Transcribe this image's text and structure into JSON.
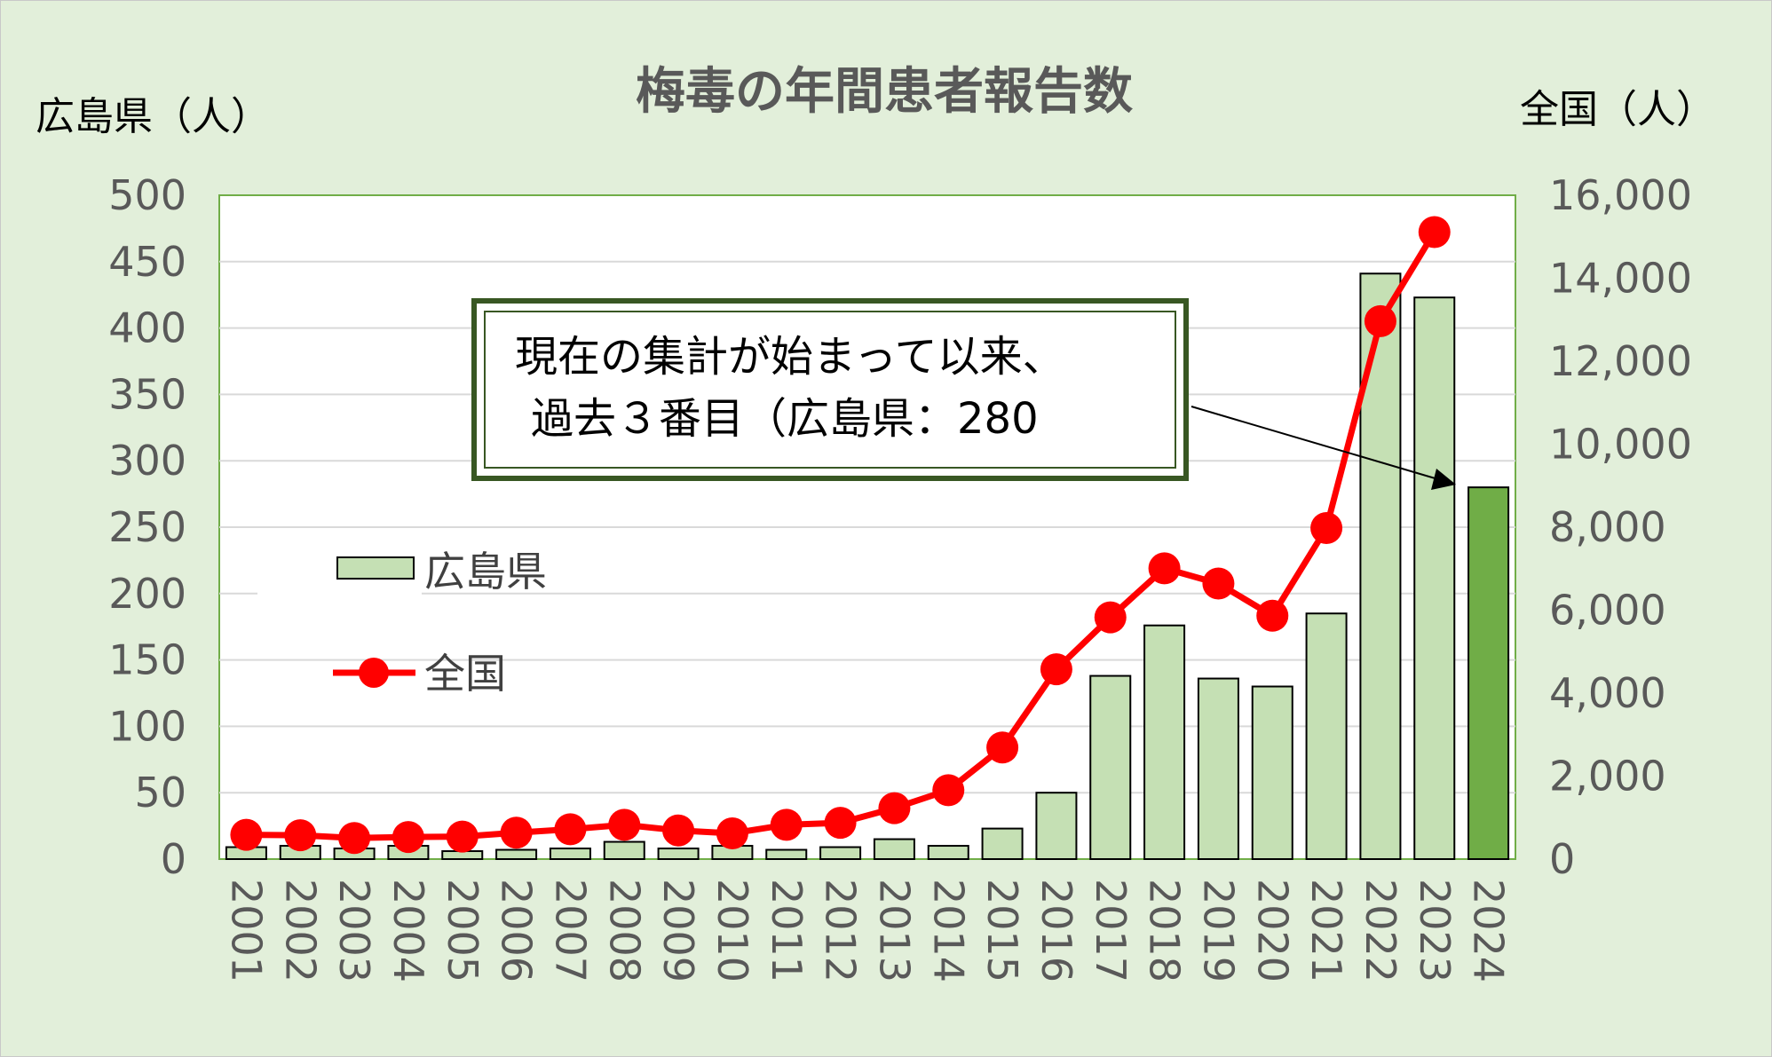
{
  "chart_data": {
    "type": "bar",
    "title": "梅毒の年間患者報告数",
    "ylabel_left": "広島県（人）",
    "ylabel_right": "全国（人）",
    "categories": [
      "2001",
      "2002",
      "2003",
      "2004",
      "2005",
      "2006",
      "2007",
      "2008",
      "2009",
      "2010",
      "2011",
      "2012",
      "2013",
      "2014",
      "2015",
      "2016",
      "2017",
      "2018",
      "2019",
      "2020",
      "2021",
      "2022",
      "2023",
      "2024"
    ],
    "ylim_left": [
      0,
      500
    ],
    "ylim_right": [
      0,
      16000
    ],
    "left_ticks": [
      "0",
      "50",
      "100",
      "150",
      "200",
      "250",
      "300",
      "350",
      "400",
      "450",
      "500"
    ],
    "right_ticks": [
      "0",
      "2,000",
      "4,000",
      "6,000",
      "8,000",
      "10,000",
      "12,000",
      "14,000",
      "16,000"
    ],
    "grid": true,
    "series": [
      {
        "name": "広島県",
        "type": "bar",
        "axis": "left",
        "values": [
          9,
          10,
          8,
          10,
          6,
          7,
          8,
          13,
          8,
          10,
          7,
          9,
          15,
          10,
          23,
          50,
          138,
          176,
          136,
          130,
          185,
          441,
          423,
          280
        ]
      },
      {
        "name": "全国",
        "type": "line",
        "axis": "right",
        "values": [
          585,
          575,
          509,
          533,
          543,
          637,
          719,
          827,
          691,
          621,
          827,
          875,
          1228,
          1661,
          2690,
          4575,
          5826,
          7007,
          6642,
          5867,
          7978,
          12966,
          15113,
          null
        ]
      }
    ],
    "legend": {
      "position": "left",
      "items": [
        "広島県",
        "全国"
      ]
    },
    "colors": {
      "bar": "#c5e0b4",
      "bar_highlight": "#70ad47",
      "line": "#ff0000",
      "background": "#e2efda",
      "plot_bg": "#ffffff",
      "plot_border": "#70ad47"
    },
    "annotation": {
      "line1": "現在の集計が始まって以来、",
      "line2": "過去３番目（広島県：280"
    }
  }
}
